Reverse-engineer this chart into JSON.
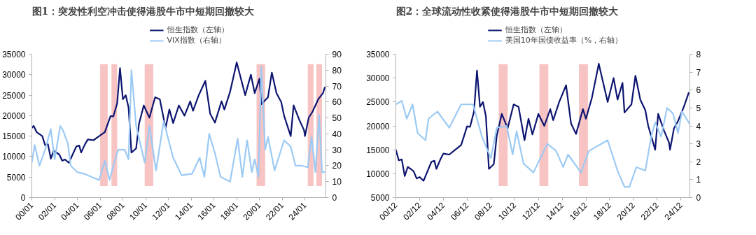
{
  "chart_data": [
    {
      "type": "line",
      "title": "图1：突发性利空冲击使得港股牛市中短期回撤较大",
      "legend": "top",
      "xlim": [
        "2000-01",
        "2025-11"
      ],
      "xticks": [
        {
          "value": "2000-01",
          "label": "00/01"
        },
        {
          "value": "2002-01",
          "label": "02/01"
        },
        {
          "value": "2004-01",
          "label": "04/01"
        },
        {
          "value": "2006-01",
          "label": "06/01"
        },
        {
          "value": "2008-01",
          "label": "08/01"
        },
        {
          "value": "2010-01",
          "label": "10/01"
        },
        {
          "value": "2012-01",
          "label": "12/01"
        },
        {
          "value": "2014-01",
          "label": "14/01"
        },
        {
          "value": "2016-01",
          "label": "16/01"
        },
        {
          "value": "2018-01",
          "label": "18/01"
        },
        {
          "value": "2020-01",
          "label": "20/01"
        },
        {
          "value": "2022-01",
          "label": "22/01"
        },
        {
          "value": "2024-01",
          "label": "24/01"
        }
      ],
      "ylim": [
        0,
        35000
      ],
      "yticks": [
        0,
        5000,
        10000,
        15000,
        20000,
        25000,
        30000,
        35000
      ],
      "y2lim": [
        0,
        90
      ],
      "y2ticks": [
        0,
        10,
        20,
        30,
        40,
        50,
        60,
        70,
        80,
        90
      ],
      "series": [
        {
          "name": "恒生指数（左轴）",
          "color": "#0d1570",
          "x": [
            "2000-01",
            "2000-03",
            "2000-06",
            "2000-09",
            "2000-12",
            "2001-03",
            "2001-06",
            "2001-09",
            "2001-12",
            "2002-03",
            "2002-06",
            "2002-09",
            "2002-12",
            "2003-04",
            "2003-07",
            "2003-12",
            "2004-03",
            "2004-05",
            "2004-09",
            "2004-12",
            "2005-06",
            "2005-12",
            "2006-06",
            "2006-12",
            "2007-03",
            "2007-07",
            "2007-10",
            "2008-01",
            "2008-04",
            "2008-07",
            "2008-10",
            "2009-03",
            "2009-06",
            "2009-11",
            "2010-05",
            "2010-11",
            "2011-04",
            "2011-10",
            "2012-02",
            "2012-06",
            "2012-12",
            "2013-06",
            "2013-12",
            "2014-03",
            "2014-09",
            "2015-04",
            "2015-09",
            "2016-02",
            "2016-09",
            "2016-12",
            "2017-06",
            "2018-01",
            "2018-10",
            "2019-04",
            "2019-08",
            "2020-01",
            "2020-03",
            "2020-10",
            "2021-02",
            "2021-07",
            "2021-12",
            "2022-03",
            "2022-10",
            "2023-01",
            "2023-07",
            "2023-12",
            "2024-01",
            "2024-05",
            "2024-09",
            "2025-03",
            "2025-08",
            "2025-10"
          ],
          "values": [
            17000,
            17500,
            16000,
            15500,
            15000,
            12800,
            13000,
            9500,
            11400,
            11000,
            10500,
            9000,
            9300,
            8500,
            10000,
            12500,
            12700,
            11000,
            13000,
            14200,
            14000,
            15000,
            16000,
            19900,
            19800,
            23000,
            31600,
            24000,
            25000,
            22000,
            11000,
            12000,
            18000,
            22500,
            19500,
            24500,
            24000,
            17000,
            21500,
            18200,
            22500,
            20000,
            23500,
            21200,
            25000,
            28500,
            20500,
            18300,
            23500,
            21500,
            25800,
            33000,
            25000,
            30000,
            25500,
            29000,
            22800,
            24500,
            30500,
            25500,
            23300,
            20000,
            15000,
            22500,
            19000,
            16500,
            15000,
            19500,
            21000,
            24000,
            25500,
            27000
          ]
        },
        {
          "name": "VIX指数（右轴）",
          "color": "#9ccaf4",
          "axis": "y2",
          "x": [
            "2000-01",
            "2000-04",
            "2000-09",
            "2001-03",
            "2001-09",
            "2002-01",
            "2002-07",
            "2002-10",
            "2003-03",
            "2003-06",
            "2004-01",
            "2004-08",
            "2005-04",
            "2005-12",
            "2006-06",
            "2006-11",
            "2007-02",
            "2007-08",
            "2008-03",
            "2008-07",
            "2008-10",
            "2009-03",
            "2009-12",
            "2010-05",
            "2010-12",
            "2011-08",
            "2012-06",
            "2013-03",
            "2014-02",
            "2014-10",
            "2015-03",
            "2015-08",
            "2016-02",
            "2016-08",
            "2017-06",
            "2018-02",
            "2018-07",
            "2018-12",
            "2019-05",
            "2019-08",
            "2019-12",
            "2020-03",
            "2020-07",
            "2020-10",
            "2021-05",
            "2022-03",
            "2022-10",
            "2023-03",
            "2023-10",
            "2024-04",
            "2024-08",
            "2024-12",
            "2025-04",
            "2025-07",
            "2025-10"
          ],
          "values": [
            22,
            33,
            20,
            30,
            43,
            24,
            45,
            42,
            34,
            20,
            16,
            15,
            13,
            11,
            23,
            11,
            18,
            30,
            30,
            24,
            80,
            45,
            22,
            45,
            17,
            48,
            25,
            14,
            15,
            25,
            13,
            40,
            28,
            13,
            10,
            37,
            13,
            36,
            16,
            24,
            13,
            82,
            30,
            38,
            17,
            36,
            32,
            20,
            20,
            19,
            38,
            16,
            52,
            16,
            16
          ]
        }
      ],
      "bands": [
        {
          "axis": "x",
          "from": "2006-01",
          "to": "2006-09",
          "color": "#f4a9a9"
        },
        {
          "axis": "x",
          "from": "2007-01",
          "to": "2007-07",
          "color": "#f4a9a9"
        },
        {
          "axis": "x",
          "from": "2009-12",
          "to": "2010-09",
          "color": "#f4a9a9"
        },
        {
          "axis": "x",
          "from": "2019-10",
          "to": "2020-07",
          "color": "#f4a9a9"
        },
        {
          "axis": "x",
          "from": "2024-04",
          "to": "2024-10",
          "color": "#f4a9a9"
        },
        {
          "axis": "x",
          "from": "2025-01",
          "to": "2025-07",
          "color": "#f4a9a9"
        }
      ]
    },
    {
      "type": "line",
      "title": "图2：全球流动性收紧使得港股牛市中短期回撤较大",
      "legend": "top",
      "xlim": [
        "2000-12",
        "2025-09"
      ],
      "xticks": [
        {
          "value": "2000-12",
          "label": "00/12"
        },
        {
          "value": "2002-12",
          "label": "02/12"
        },
        {
          "value": "2004-12",
          "label": "04/12"
        },
        {
          "value": "2006-12",
          "label": "06/12"
        },
        {
          "value": "2008-12",
          "label": "08/12"
        },
        {
          "value": "2010-12",
          "label": "10/12"
        },
        {
          "value": "2012-12",
          "label": "12/12"
        },
        {
          "value": "2014-12",
          "label": "14/12"
        },
        {
          "value": "2016-12",
          "label": "16/12"
        },
        {
          "value": "2018-12",
          "label": "18/12"
        },
        {
          "value": "2020-12",
          "label": "20/12"
        },
        {
          "value": "2022-12",
          "label": "22/12"
        },
        {
          "value": "2024-12",
          "label": "24/12"
        }
      ],
      "ylim": [
        5000,
        35000
      ],
      "yticks": [
        5000,
        10000,
        15000,
        20000,
        25000,
        30000,
        35000
      ],
      "y2lim": [
        0,
        8
      ],
      "y2ticks": [
        0,
        1,
        2,
        3,
        4,
        5,
        6,
        7,
        8
      ],
      "series": [
        {
          "name": "恒生指数（左轴）",
          "color": "#0d1570",
          "x": [
            "2000-12",
            "2001-03",
            "2001-06",
            "2001-09",
            "2001-12",
            "2002-03",
            "2002-06",
            "2002-09",
            "2002-12",
            "2003-04",
            "2003-07",
            "2003-12",
            "2004-03",
            "2004-05",
            "2004-09",
            "2004-12",
            "2005-06",
            "2005-12",
            "2006-06",
            "2006-12",
            "2007-03",
            "2007-07",
            "2007-10",
            "2008-01",
            "2008-04",
            "2008-07",
            "2008-10",
            "2009-03",
            "2009-06",
            "2009-11",
            "2010-05",
            "2010-11",
            "2011-04",
            "2011-10",
            "2012-02",
            "2012-06",
            "2012-12",
            "2013-06",
            "2013-12",
            "2014-03",
            "2014-09",
            "2015-04",
            "2015-09",
            "2016-02",
            "2016-09",
            "2016-12",
            "2017-06",
            "2018-01",
            "2018-10",
            "2019-04",
            "2019-08",
            "2020-01",
            "2020-03",
            "2020-10",
            "2021-02",
            "2021-07",
            "2021-12",
            "2022-03",
            "2022-10",
            "2023-01",
            "2023-07",
            "2023-12",
            "2024-01",
            "2024-05",
            "2024-09",
            "2025-03",
            "2025-08"
          ],
          "values": [
            15000,
            12800,
            13000,
            9500,
            11400,
            11000,
            10500,
            9000,
            9300,
            8500,
            10000,
            12500,
            12700,
            11000,
            13000,
            14200,
            14000,
            15000,
            16000,
            19900,
            19800,
            23000,
            31600,
            24000,
            25000,
            22000,
            11000,
            12000,
            18000,
            22500,
            19500,
            24500,
            24000,
            17000,
            21500,
            18200,
            22500,
            20000,
            23500,
            21200,
            25000,
            28500,
            20500,
            18300,
            23500,
            21500,
            25800,
            33000,
            25000,
            30000,
            25500,
            29000,
            22800,
            24500,
            30500,
            25500,
            23300,
            20000,
            15000,
            22500,
            19000,
            16500,
            15000,
            19500,
            21000,
            24000,
            27000
          ]
        },
        {
          "name": "美国10年国债收益率（%，右轴）",
          "color": "#9ccaf4",
          "axis": "y2",
          "x": [
            "2000-12",
            "2001-06",
            "2001-11",
            "2002-05",
            "2002-10",
            "2003-06",
            "2003-09",
            "2004-06",
            "2005-06",
            "2006-06",
            "2007-06",
            "2008-03",
            "2008-12",
            "2009-06",
            "2010-04",
            "2010-10",
            "2011-02",
            "2011-09",
            "2012-07",
            "2013-09",
            "2014-06",
            "2015-01",
            "2015-06",
            "2016-07",
            "2017-03",
            "2018-10",
            "2019-08",
            "2020-03",
            "2020-08",
            "2021-03",
            "2021-12",
            "2022-06",
            "2022-10",
            "2023-04",
            "2023-10",
            "2024-04",
            "2024-09",
            "2025-01",
            "2025-09"
          ],
          "values": [
            5.2,
            5.4,
            4.4,
            5.2,
            3.6,
            3.2,
            4.4,
            4.8,
            3.9,
            5.2,
            5.2,
            3.4,
            2.2,
            3.9,
            4.0,
            2.4,
            3.7,
            1.9,
            1.4,
            3.0,
            2.6,
            1.7,
            2.4,
            1.4,
            2.6,
            3.2,
            1.5,
            0.6,
            0.6,
            1.7,
            1.5,
            3.4,
            4.2,
            3.4,
            5.0,
            4.7,
            3.6,
            4.8,
            4.1
          ]
        }
      ],
      "bands": [
        {
          "axis": "x",
          "from": "2009-08",
          "to": "2010-05",
          "color": "#f4a9a9"
        },
        {
          "axis": "x",
          "from": "2013-01",
          "to": "2013-10",
          "color": "#f4a9a9"
        },
        {
          "axis": "x",
          "from": "2016-05",
          "to": "2017-02",
          "color": "#f4a9a9"
        }
      ]
    }
  ]
}
